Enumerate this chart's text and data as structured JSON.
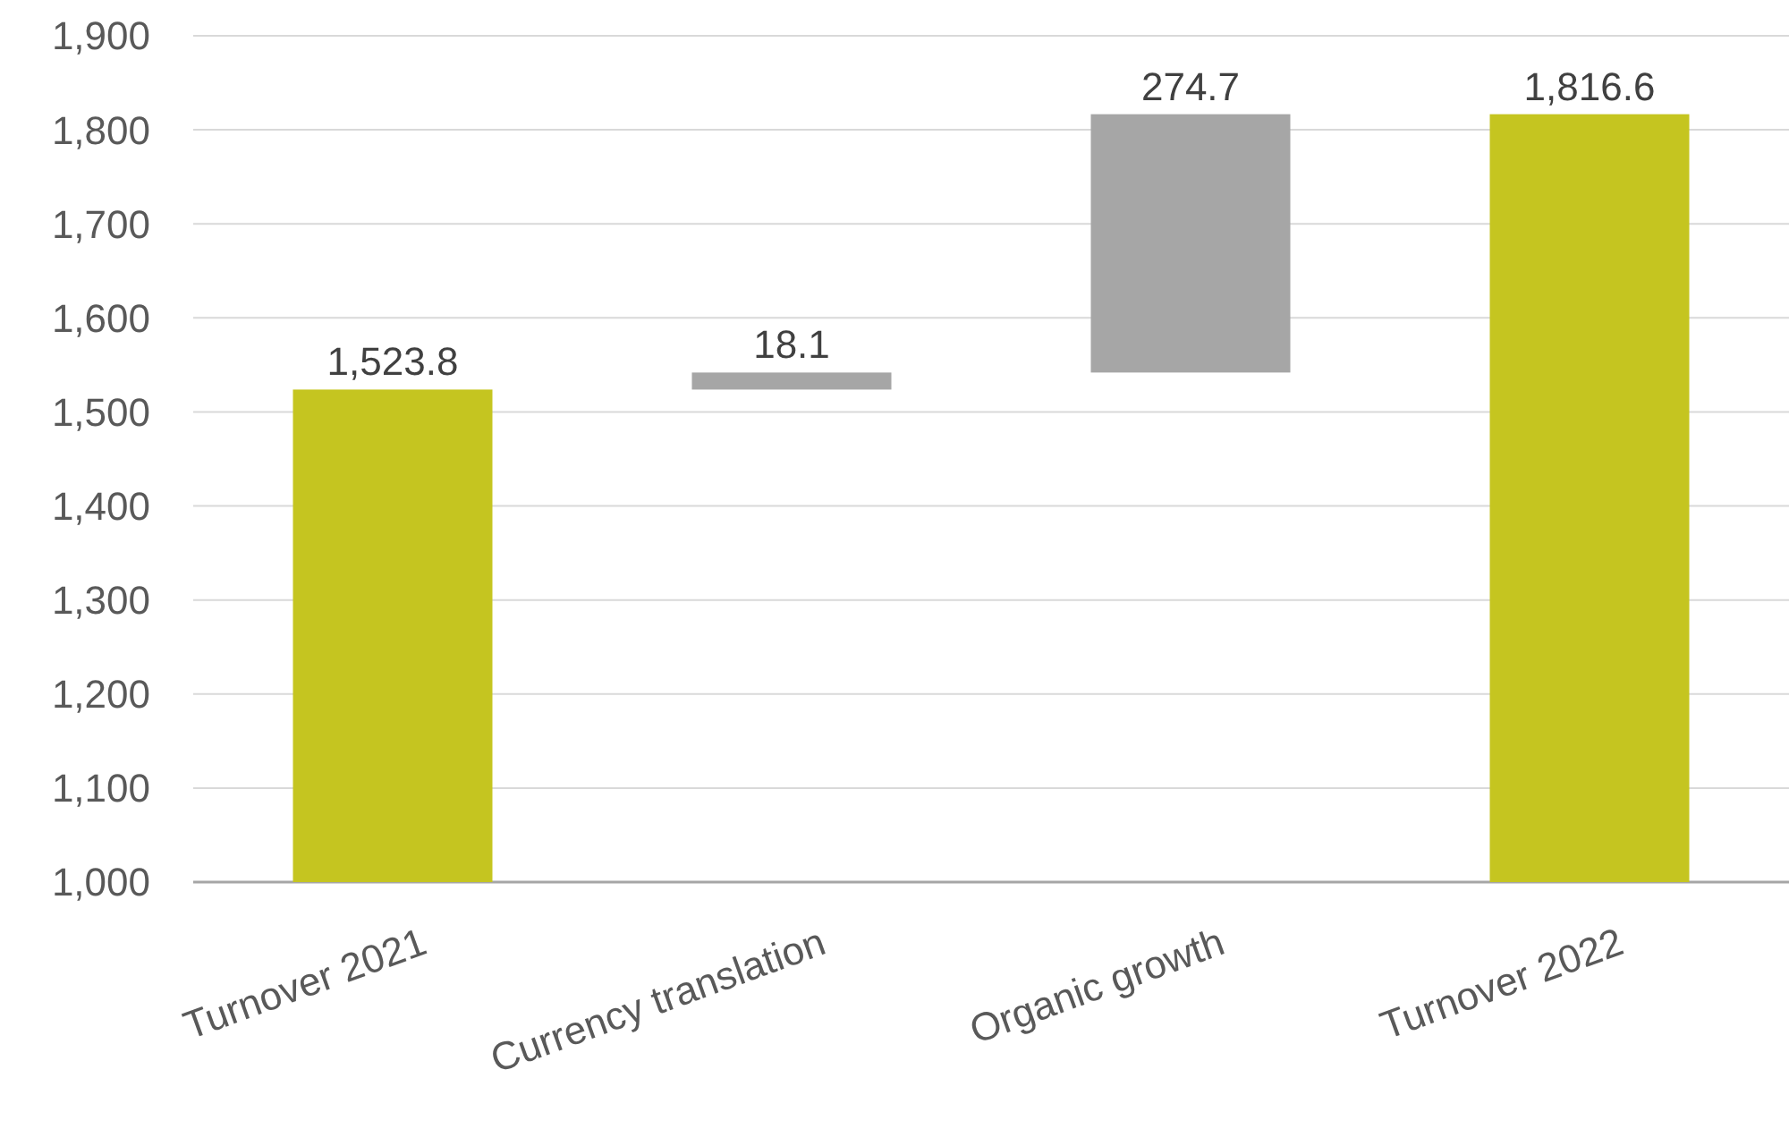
{
  "chart_data": {
    "type": "bar",
    "categories": [
      "Turnover 2021",
      "Currency translation",
      "Organic growth",
      "Turnover 2022"
    ],
    "values": [
      1523.8,
      18.1,
      274.7,
      1816.6
    ],
    "base": [
      null,
      1523.8,
      1541.9,
      null
    ],
    "colors": [
      "#c5c520",
      "#a6a6a6",
      "#a6a6a6",
      "#c5c520"
    ],
    "value_labels": [
      "1,523.8",
      "18.1",
      "274.7",
      "1,816.6"
    ],
    "ylim": [
      1000,
      1900
    ],
    "yticks": [
      {
        "value": 1000,
        "label": "1,000"
      },
      {
        "value": 1100,
        "label": "1,100"
      },
      {
        "value": 1200,
        "label": "1,200"
      },
      {
        "value": 1300,
        "label": "1,300"
      },
      {
        "value": 1400,
        "label": "1,400"
      },
      {
        "value": 1500,
        "label": "1,500"
      },
      {
        "value": 1600,
        "label": "1,600"
      },
      {
        "value": 1700,
        "label": "1,700"
      },
      {
        "value": 1800,
        "label": "1,800"
      },
      {
        "value": 1900,
        "label": "1,900"
      }
    ],
    "grid": "y"
  }
}
